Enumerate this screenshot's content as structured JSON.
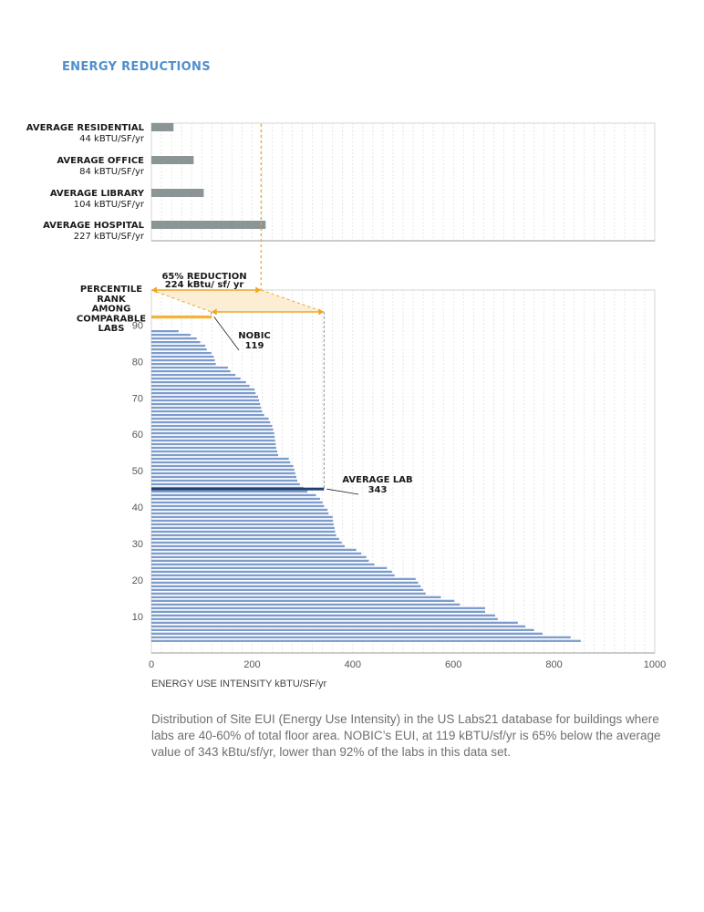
{
  "heading": "ENERGY REDUCTIONS",
  "caption": "Distribution of Site EUI (Energy Use Intensity) in the US Labs21 database for buildings where labs are 40-60% of total floor area.  NOBIC’s EUI, at 119 kBTU/sf/yr is 65% below the average value of 343 kBtu/sf/yr, lower than 92% of the labs in this data set.",
  "colors": {
    "heading": "#4f8fcc",
    "reference_bar": "#8c9596",
    "lab_bar": "#7d9ccc",
    "nobic_bar": "#f4b33a",
    "average_bar": "#1f3f72",
    "reduction": "#f0a526",
    "reduction_fill": "#fcebd0",
    "grid": "#dcdcdc",
    "caption": "#707070"
  },
  "chart_data": [
    {
      "type": "bar",
      "orientation": "horizontal",
      "categories": [
        "AVERAGE RESIDENTIAL",
        "AVERAGE OFFICE",
        "AVERAGE LIBRARY",
        "AVERAGE HOSPITAL"
      ],
      "value_labels": [
        "44 kBTU/SF/yr",
        "84 kBTU/SF/yr",
        "104 kBTU/SF/yr",
        "227 kBTU/SF/yr"
      ],
      "values": [
        44,
        84,
        104,
        227
      ],
      "xlim": [
        0,
        1000
      ],
      "grid": true
    },
    {
      "type": "bar",
      "orientation": "horizontal",
      "xlabel": "ENERGY USE INTENSITY kBTU/SF/yr",
      "ylabel_lines": [
        "PERCENTILE",
        "RANK",
        "AMONG",
        "COMPARABLE",
        "LABS"
      ],
      "xlim": [
        0,
        1000
      ],
      "ylim": [
        0,
        98
      ],
      "xticks": [
        0,
        200,
        400,
        600,
        800,
        1000
      ],
      "yticks": [
        10,
        20,
        30,
        40,
        50,
        60,
        70,
        80,
        90
      ],
      "grid": true,
      "bar_values": [
        853,
        833,
        777,
        760,
        743,
        728,
        688,
        683,
        663,
        663,
        613,
        602,
        575,
        545,
        540,
        535,
        530,
        525,
        483,
        478,
        468,
        443,
        432,
        427,
        417,
        407,
        384,
        378,
        373,
        367,
        365,
        364,
        362,
        361,
        360,
        352,
        350,
        343,
        340,
        335,
        327,
        310,
        302,
        295,
        290,
        288,
        286,
        284,
        282,
        276,
        273,
        252,
        250,
        248,
        247,
        246,
        245,
        244,
        242,
        240,
        236,
        233,
        224,
        220,
        218,
        216,
        214,
        212,
        207,
        205,
        195,
        188,
        177,
        167,
        157,
        152,
        128,
        126,
        124,
        119,
        110,
        107,
        97,
        90,
        78,
        54
      ],
      "nobic": {
        "label": "NOBIC",
        "value": "119",
        "percentile": 92
      },
      "average": {
        "label": "AVERAGE LAB",
        "value": "343",
        "percentile": 45
      },
      "reduction": {
        "label": "65% REDUCTION",
        "sublabel": "224 kBtu/ sf/ yr",
        "from": 119,
        "to": 343,
        "percent": 65
      }
    }
  ]
}
